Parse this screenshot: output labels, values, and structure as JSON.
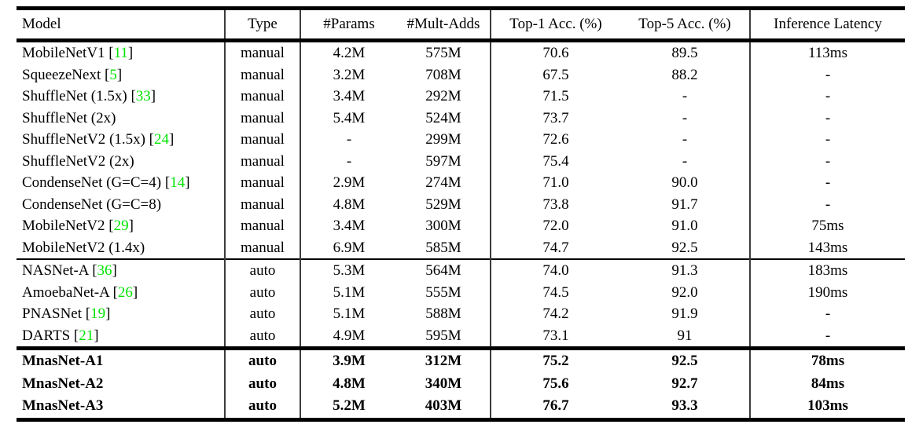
{
  "colors": {
    "citation_green": "#00e400",
    "rule_black": "#000000",
    "vertical_rule_gray": "#3c3c3c"
  },
  "table": {
    "columns": [
      "Model",
      "Type",
      "#Params",
      "#Mult-Adds",
      "Top-1 Acc. (%)",
      "Top-5 Acc. (%)",
      "Inference Latency"
    ],
    "sections": [
      {
        "name": "manual-models",
        "bold": false,
        "rows": [
          {
            "model": "MobileNetV1",
            "cite": "11",
            "type": "manual",
            "params": "4.2M",
            "mult_adds": "575M",
            "top1": "70.6",
            "top5": "89.5",
            "latency": "113ms"
          },
          {
            "model": "SqueezeNext",
            "cite": "5",
            "type": "manual",
            "params": "3.2M",
            "mult_adds": "708M",
            "top1": "67.5",
            "top5": "88.2",
            "latency": "-"
          },
          {
            "model": "ShuffleNet (1.5x)",
            "cite": "33",
            "type": "manual",
            "params": "3.4M",
            "mult_adds": "292M",
            "top1": "71.5",
            "top5": "-",
            "latency": "-"
          },
          {
            "model": "ShuffleNet (2x)",
            "cite": null,
            "type": "manual",
            "params": "5.4M",
            "mult_adds": "524M",
            "top1": "73.7",
            "top5": "-",
            "latency": "-"
          },
          {
            "model": "ShuffleNetV2 (1.5x)",
            "cite": "24",
            "type": "manual",
            "params": "-",
            "mult_adds": "299M",
            "top1": "72.6",
            "top5": "-",
            "latency": "-"
          },
          {
            "model": "ShuffleNetV2 (2x)",
            "cite": null,
            "type": "manual",
            "params": "-",
            "mult_adds": "597M",
            "top1": "75.4",
            "top5": "-",
            "latency": "-"
          },
          {
            "model": "CondenseNet (G=C=4)",
            "cite": "14",
            "type": "manual",
            "params": "2.9M",
            "mult_adds": "274M",
            "top1": "71.0",
            "top5": "90.0",
            "latency": "-"
          },
          {
            "model": "CondenseNet (G=C=8)",
            "cite": null,
            "type": "manual",
            "params": "4.8M",
            "mult_adds": "529M",
            "top1": "73.8",
            "top5": "91.7",
            "latency": "-"
          },
          {
            "model": "MobileNetV2",
            "cite": "29",
            "type": "manual",
            "params": "3.4M",
            "mult_adds": "300M",
            "top1": "72.0",
            "top5": "91.0",
            "latency": "75ms"
          },
          {
            "model": "MobileNetV2 (1.4x)",
            "cite": null,
            "type": "manual",
            "params": "6.9M",
            "mult_adds": "585M",
            "top1": "74.7",
            "top5": "92.5",
            "latency": "143ms"
          }
        ]
      },
      {
        "name": "auto-models",
        "bold": false,
        "rows": [
          {
            "model": "NASNet-A",
            "cite": "36",
            "type": "auto",
            "params": "5.3M",
            "mult_adds": "564M",
            "top1": "74.0",
            "top5": "91.3",
            "latency": "183ms"
          },
          {
            "model": "AmoebaNet-A",
            "cite": "26",
            "type": "auto",
            "params": "5.1M",
            "mult_adds": "555M",
            "top1": "74.5",
            "top5": "92.0",
            "latency": "190ms"
          },
          {
            "model": "PNASNet",
            "cite": "19",
            "type": "auto",
            "params": "5.1M",
            "mult_adds": "588M",
            "top1": "74.2",
            "top5": "91.9",
            "latency": "-"
          },
          {
            "model": "DARTS",
            "cite": "21",
            "type": "auto",
            "params": "4.9M",
            "mult_adds": "595M",
            "top1": "73.1",
            "top5": "91",
            "latency": "-"
          }
        ]
      },
      {
        "name": "mnasnet-models",
        "bold": true,
        "rows": [
          {
            "model": "MnasNet-A1",
            "cite": null,
            "type": "auto",
            "params": "3.9M",
            "mult_adds": "312M",
            "top1": "75.2",
            "top5": "92.5",
            "latency": "78ms"
          },
          {
            "model": "MnasNet-A2",
            "cite": null,
            "type": "auto",
            "params": "4.8M",
            "mult_adds": "340M",
            "top1": "75.6",
            "top5": "92.7",
            "latency": "84ms"
          },
          {
            "model": "MnasNet-A3",
            "cite": null,
            "type": "auto",
            "params": "5.2M",
            "mult_adds": "403M",
            "top1": "76.7",
            "top5": "93.3",
            "latency": "103ms"
          }
        ]
      }
    ]
  }
}
